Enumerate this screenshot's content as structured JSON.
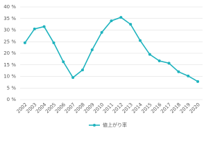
{
  "chart_data": {
    "type": "line",
    "categories": [
      "2002",
      "2003",
      "2004",
      "2005",
      "2006",
      "2007",
      "2008",
      "2009",
      "2010",
      "2011",
      "2012",
      "2013",
      "2014",
      "2015",
      "2016",
      "2017",
      "2018",
      "2019",
      "2020"
    ],
    "series": [
      {
        "name": "値上がり率",
        "color": "#1fb3be",
        "values": [
          24.5,
          30.5,
          31.5,
          24.5,
          16.3,
          9.5,
          12.8,
          21.5,
          29,
          34,
          35.5,
          32.5,
          25.5,
          19.5,
          16.7,
          15.7,
          12,
          10.2,
          7.8
        ]
      }
    ],
    "ylim": [
      0,
      40
    ],
    "yticks": [
      {
        "value": 0,
        "label": "0 %"
      },
      {
        "value": 5,
        "label": "5 %"
      },
      {
        "value": 10,
        "label": "10 %"
      },
      {
        "value": 15,
        "label": "15 %"
      },
      {
        "value": 20,
        "label": "20 %"
      },
      {
        "value": 25,
        "label": "25 %"
      },
      {
        "value": 30,
        "label": "30 %"
      },
      {
        "value": 35,
        "label": "35 %"
      },
      {
        "value": 40,
        "label": "40 %"
      }
    ],
    "grid": true,
    "legend": "bottom"
  }
}
